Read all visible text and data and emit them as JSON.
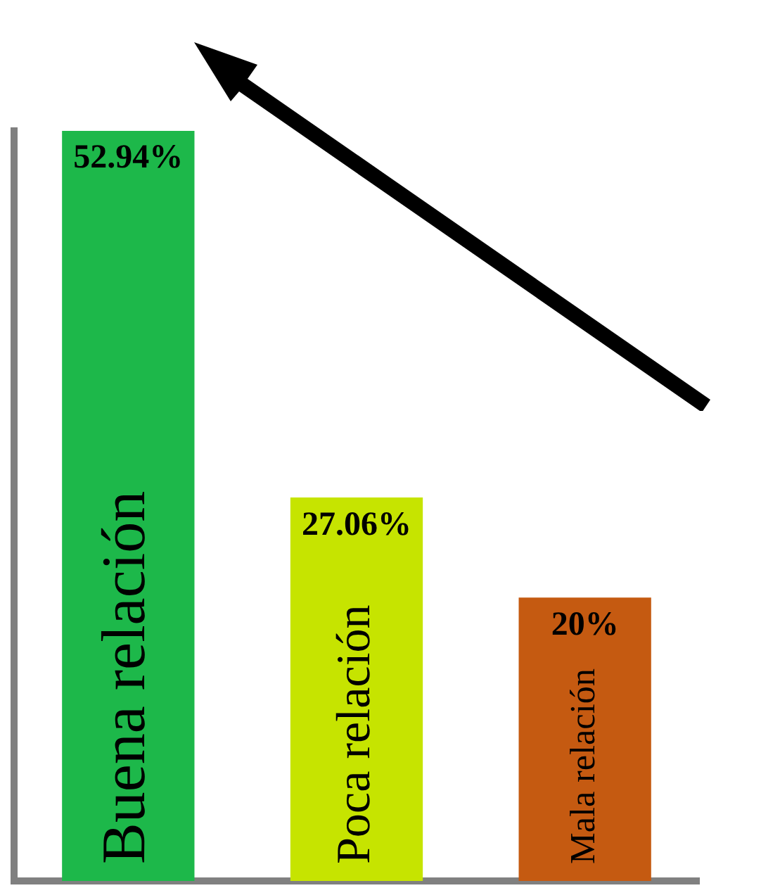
{
  "chart_data": {
    "type": "bar",
    "categories": [
      "Buena relación",
      "Poca relación",
      "Mala relación"
    ],
    "values": [
      52.94,
      27.06,
      20
    ],
    "colors": [
      "#1db84a",
      "#c6e400",
      "#c55a11"
    ],
    "value_labels": [
      "52.94%",
      "27.06%",
      "20%"
    ]
  }
}
